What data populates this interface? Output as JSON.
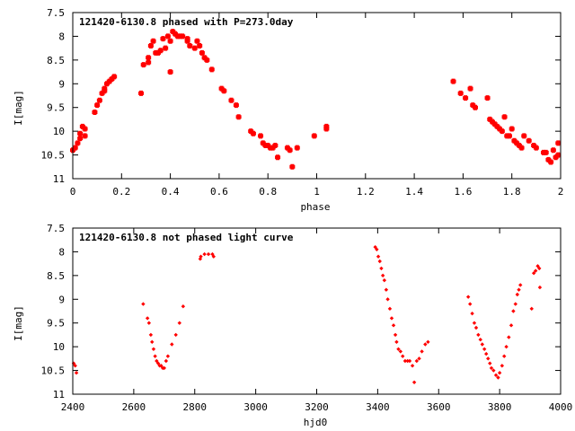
{
  "chart_data": [
    {
      "type": "scatter",
      "title": "121420-6130.8 phased with P=273.0day",
      "xlabel": "phase",
      "ylabel": "I[mag]",
      "xlim": [
        0,
        2
      ],
      "ylim": [
        11,
        7.5
      ],
      "y_inverted": true,
      "grid": false,
      "legend": "none",
      "marker_color": "#ff0000",
      "marker_shape": "plus-square",
      "xticks": [
        0,
        0.2,
        0.4,
        0.6,
        0.8,
        1,
        1.2,
        1.4,
        1.6,
        1.8,
        2
      ],
      "xtick_labels": [
        "0",
        "0.2",
        "0.4",
        "0.6",
        "0.8",
        "1",
        "1.2",
        "1.4",
        "1.6",
        "1.8",
        "2"
      ],
      "yticks": [
        7.5,
        8,
        8.5,
        9,
        9.5,
        10,
        10.5,
        11
      ],
      "ytick_labels": [
        "7.5",
        "8",
        "8.5",
        "9",
        "9.5",
        "10",
        "10.5",
        "11"
      ],
      "points": [
        [
          0.0,
          10.4
        ],
        [
          0.01,
          10.35
        ],
        [
          0.02,
          10.25
        ],
        [
          0.03,
          10.15
        ],
        [
          0.03,
          10.05
        ],
        [
          0.04,
          9.9
        ],
        [
          0.05,
          10.1
        ],
        [
          0.05,
          9.95
        ],
        [
          0.09,
          9.6
        ],
        [
          0.1,
          9.45
        ],
        [
          0.11,
          9.35
        ],
        [
          0.12,
          9.2
        ],
        [
          0.13,
          9.1
        ],
        [
          0.13,
          9.15
        ],
        [
          0.14,
          9.0
        ],
        [
          0.15,
          8.95
        ],
        [
          0.16,
          8.9
        ],
        [
          0.17,
          8.85
        ],
        [
          0.28,
          9.2
        ],
        [
          0.29,
          8.6
        ],
        [
          0.31,
          8.55
        ],
        [
          0.31,
          8.45
        ],
        [
          0.32,
          8.2
        ],
        [
          0.33,
          8.1
        ],
        [
          0.34,
          8.35
        ],
        [
          0.35,
          8.35
        ],
        [
          0.36,
          8.3
        ],
        [
          0.37,
          8.05
        ],
        [
          0.38,
          8.25
        ],
        [
          0.39,
          8.0
        ],
        [
          0.4,
          8.1
        ],
        [
          0.4,
          8.75
        ],
        [
          0.41,
          7.9
        ],
        [
          0.42,
          7.95
        ],
        [
          0.43,
          8.0
        ],
        [
          0.44,
          8.0
        ],
        [
          0.45,
          8.0
        ],
        [
          0.47,
          8.1
        ],
        [
          0.47,
          8.05
        ],
        [
          0.48,
          8.2
        ],
        [
          0.5,
          8.25
        ],
        [
          0.51,
          8.1
        ],
        [
          0.52,
          8.2
        ],
        [
          0.53,
          8.35
        ],
        [
          0.54,
          8.45
        ],
        [
          0.55,
          8.5
        ],
        [
          0.57,
          8.7
        ],
        [
          0.61,
          9.1
        ],
        [
          0.62,
          9.15
        ],
        [
          0.65,
          9.35
        ],
        [
          0.67,
          9.45
        ],
        [
          0.68,
          9.7
        ],
        [
          0.73,
          10.0
        ],
        [
          0.74,
          10.05
        ],
        [
          0.77,
          10.1
        ],
        [
          0.78,
          10.25
        ],
        [
          0.79,
          10.3
        ],
        [
          0.8,
          10.3
        ],
        [
          0.81,
          10.35
        ],
        [
          0.82,
          10.35
        ],
        [
          0.83,
          10.3
        ],
        [
          0.84,
          10.55
        ],
        [
          0.88,
          10.35
        ],
        [
          0.89,
          10.4
        ],
        [
          0.9,
          10.75
        ],
        [
          0.92,
          10.35
        ],
        [
          0.99,
          10.1
        ],
        [
          1.04,
          9.95
        ],
        [
          1.04,
          9.9
        ],
        [
          1.56,
          8.95
        ],
        [
          1.59,
          9.2
        ],
        [
          1.61,
          9.3
        ],
        [
          1.63,
          9.1
        ],
        [
          1.64,
          9.45
        ],
        [
          1.65,
          9.5
        ],
        [
          1.7,
          9.3
        ],
        [
          1.71,
          9.75
        ],
        [
          1.72,
          9.8
        ],
        [
          1.73,
          9.85
        ],
        [
          1.74,
          9.9
        ],
        [
          1.75,
          9.95
        ],
        [
          1.76,
          10.0
        ],
        [
          1.77,
          9.7
        ],
        [
          1.78,
          10.1
        ],
        [
          1.79,
          10.1
        ],
        [
          1.8,
          9.95
        ],
        [
          1.81,
          10.2
        ],
        [
          1.82,
          10.25
        ],
        [
          1.83,
          10.3
        ],
        [
          1.84,
          10.35
        ],
        [
          1.85,
          10.1
        ],
        [
          1.87,
          10.2
        ],
        [
          1.89,
          10.3
        ],
        [
          1.9,
          10.35
        ],
        [
          1.93,
          10.45
        ],
        [
          1.94,
          10.45
        ],
        [
          1.95,
          10.6
        ],
        [
          1.96,
          10.65
        ],
        [
          1.97,
          10.4
        ],
        [
          1.98,
          10.55
        ],
        [
          1.99,
          10.5
        ],
        [
          1.99,
          10.25
        ]
      ]
    },
    {
      "type": "scatter",
      "title": "121420-6130.8 not phased light curve",
      "xlabel": "hjd0",
      "ylabel": "I[mag]",
      "xlim": [
        2400,
        4000
      ],
      "ylim": [
        11,
        7.5
      ],
      "y_inverted": true,
      "grid": false,
      "legend": "none",
      "marker_color": "#ff0000",
      "marker_shape": "diamond",
      "xticks": [
        2400,
        2600,
        2800,
        3000,
        3200,
        3400,
        3600,
        3800,
        4000
      ],
      "xtick_labels": [
        "2400",
        "2600",
        "2800",
        "3000",
        "3200",
        "3400",
        "3600",
        "3800",
        "4000"
      ],
      "yticks": [
        7.5,
        8,
        8.5,
        9,
        9.5,
        10,
        10.5,
        11
      ],
      "ytick_labels": [
        "7.5",
        "8",
        "8.5",
        "9",
        "9.5",
        "10",
        "10.5",
        "11"
      ],
      "points": [
        [
          2403,
          10.35
        ],
        [
          2408,
          10.4
        ],
        [
          2412,
          10.55
        ],
        [
          2631,
          9.1
        ],
        [
          2645,
          9.4
        ],
        [
          2650,
          9.5
        ],
        [
          2656,
          9.75
        ],
        [
          2660,
          9.9
        ],
        [
          2665,
          10.05
        ],
        [
          2670,
          10.2
        ],
        [
          2675,
          10.3
        ],
        [
          2680,
          10.35
        ],
        [
          2685,
          10.4
        ],
        [
          2690,
          10.4
        ],
        [
          2695,
          10.45
        ],
        [
          2700,
          10.45
        ],
        [
          2706,
          10.3
        ],
        [
          2712,
          10.2
        ],
        [
          2725,
          9.95
        ],
        [
          2738,
          9.75
        ],
        [
          2750,
          9.5
        ],
        [
          2762,
          9.15
        ],
        [
          2818,
          8.15
        ],
        [
          2820,
          8.1
        ],
        [
          2832,
          8.05
        ],
        [
          2845,
          8.05
        ],
        [
          2858,
          8.05
        ],
        [
          2862,
          8.1
        ],
        [
          3392,
          7.9
        ],
        [
          3397,
          7.95
        ],
        [
          3402,
          8.1
        ],
        [
          3407,
          8.2
        ],
        [
          3412,
          8.35
        ],
        [
          3417,
          8.5
        ],
        [
          3422,
          8.6
        ],
        [
          3428,
          8.8
        ],
        [
          3433,
          9.0
        ],
        [
          3440,
          9.2
        ],
        [
          3446,
          9.4
        ],
        [
          3452,
          9.55
        ],
        [
          3458,
          9.75
        ],
        [
          3462,
          9.9
        ],
        [
          3468,
          10.05
        ],
        [
          3475,
          10.1
        ],
        [
          3482,
          10.2
        ],
        [
          3490,
          10.3
        ],
        [
          3498,
          10.3
        ],
        [
          3505,
          10.3
        ],
        [
          3514,
          10.4
        ],
        [
          3520,
          10.75
        ],
        [
          3528,
          10.3
        ],
        [
          3536,
          10.25
        ],
        [
          3545,
          10.1
        ],
        [
          3556,
          9.95
        ],
        [
          3565,
          9.9
        ],
        [
          3697,
          8.95
        ],
        [
          3703,
          9.1
        ],
        [
          3710,
          9.3
        ],
        [
          3717,
          9.5
        ],
        [
          3723,
          9.6
        ],
        [
          3730,
          9.75
        ],
        [
          3737,
          9.85
        ],
        [
          3743,
          9.95
        ],
        [
          3750,
          10.05
        ],
        [
          3756,
          10.15
        ],
        [
          3762,
          10.25
        ],
        [
          3768,
          10.35
        ],
        [
          3773,
          10.45
        ],
        [
          3780,
          10.5
        ],
        [
          3788,
          10.6
        ],
        [
          3795,
          10.65
        ],
        [
          3800,
          10.55
        ],
        [
          3808,
          10.4
        ],
        [
          3815,
          10.2
        ],
        [
          3822,
          10.0
        ],
        [
          3830,
          9.8
        ],
        [
          3838,
          9.55
        ],
        [
          3845,
          9.25
        ],
        [
          3852,
          9.1
        ],
        [
          3858,
          8.9
        ],
        [
          3863,
          8.8
        ],
        [
          3868,
          8.7
        ],
        [
          3905,
          9.2
        ],
        [
          3912,
          8.45
        ],
        [
          3918,
          8.4
        ],
        [
          3925,
          8.3
        ],
        [
          3930,
          8.35
        ],
        [
          3932,
          8.75
        ]
      ]
    }
  ]
}
